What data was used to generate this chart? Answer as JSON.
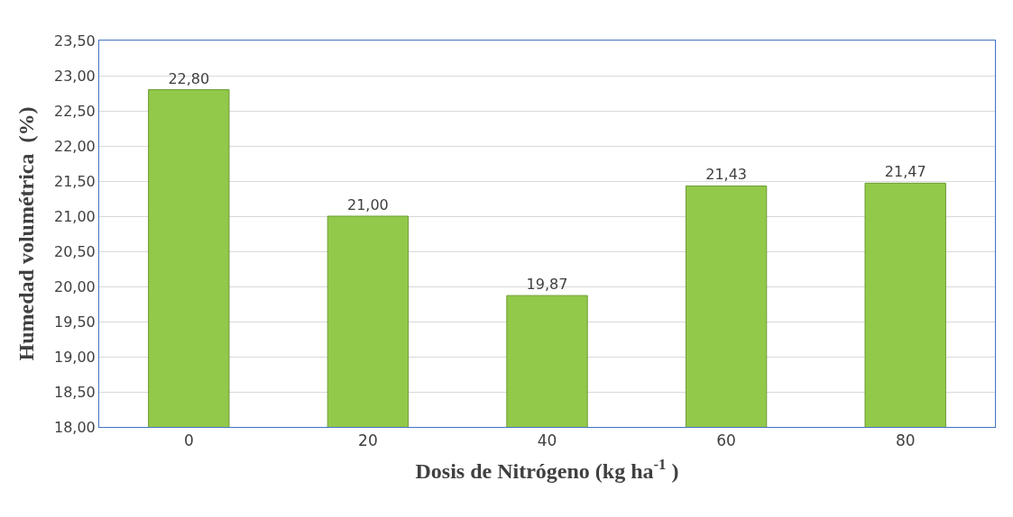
{
  "chart_data": {
    "type": "bar",
    "xlabel": "Dosis de Nitrógeno (kg ha$^{-1}$ )",
    "ylabel": "Humedad volumétrica  (%)",
    "categories": [
      "0",
      "20",
      "40",
      "60",
      "80"
    ],
    "values": [
      22.8,
      21.0,
      19.87,
      21.43,
      21.47
    ],
    "value_labels": [
      "22,80",
      "21,00",
      "19,87",
      "21,43",
      "21,47"
    ],
    "color": "#92c94a",
    "ylim": [
      18,
      23.5
    ],
    "yticks": [
      {
        "value": 18,
        "label": "18,00"
      },
      {
        "value": 18.5,
        "label": "18,50"
      },
      {
        "value": 19,
        "label": "19,00"
      },
      {
        "value": 19.5,
        "label": "19,50"
      },
      {
        "value": 20,
        "label": "20,00"
      },
      {
        "value": 20.5,
        "label": "20,50"
      },
      {
        "value": 21,
        "label": "21,00"
      },
      {
        "value": 21.5,
        "label": "21,50"
      },
      {
        "value": 22,
        "label": "22,00"
      },
      {
        "value": 22.5,
        "label": "22,50"
      },
      {
        "value": 23,
        "label": "23,00"
      },
      {
        "value": 23.5,
        "label": "23,50"
      }
    ],
    "grid": "y"
  }
}
